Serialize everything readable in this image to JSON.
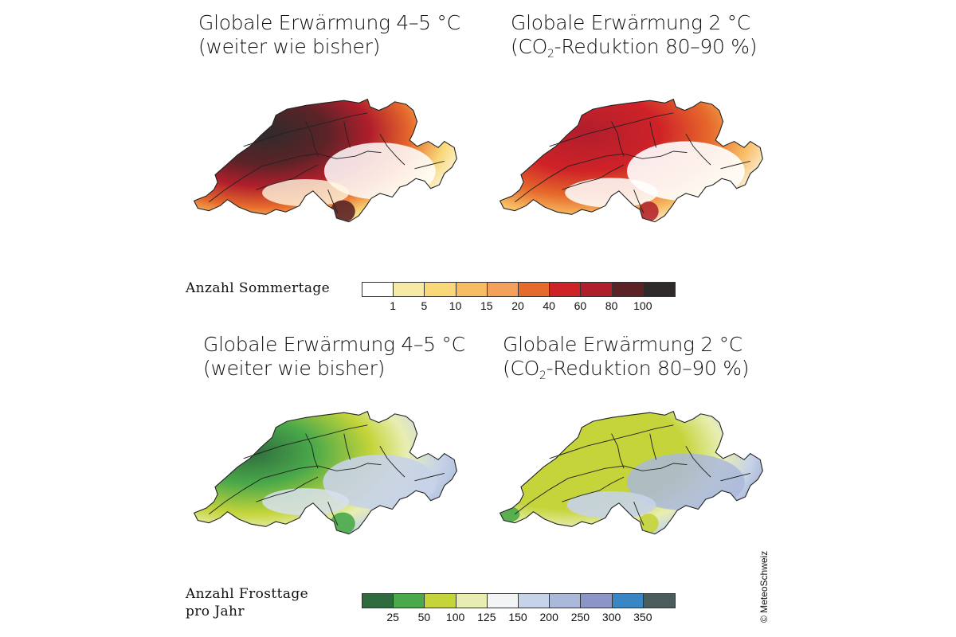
{
  "panels": [
    {
      "title_line1": "Globale Erwärmung 4–5 °C",
      "title_line2": "(weiter wie bisher)"
    },
    {
      "title_line1": "Globale Erwärmung 2 °C",
      "title_line2_pre": "(CO",
      "title_line2_sub": "2",
      "title_line2_post": "-Reduktion 80–90 %)"
    },
    {
      "title_line1": "Globale Erwärmung 4–5 °C",
      "title_line2": "(weiter wie bisher)"
    },
    {
      "title_line1": "Globale Erwärmung 2 °C",
      "title_line2_pre": "(CO",
      "title_line2_sub": "2",
      "title_line2_post": "-Reduktion 80–90 %)"
    }
  ],
  "legend_summer": {
    "label": "Anzahl Sommertage",
    "colors": [
      "#ffffff",
      "#f6eaa6",
      "#f8d878",
      "#f7bc62",
      "#f3a05a",
      "#e66a2c",
      "#cf2228",
      "#b01e2c",
      "#5c2327",
      "#2f2b2b"
    ],
    "ticks": [
      "1",
      "5",
      "10",
      "15",
      "20",
      "40",
      "60",
      "80",
      "100"
    ]
  },
  "legend_frost": {
    "label_line1": "Anzahl Frosttage",
    "label_line2": "pro Jahr",
    "colors": [
      "#2f6b3e",
      "#4aa94a",
      "#c4d43a",
      "#e8eeb2",
      "#f2f4f6",
      "#c6d3e8",
      "#aab8da",
      "#8b95c6",
      "#3a86c4",
      "#4a5c5c"
    ],
    "ticks": [
      "25",
      "50",
      "100",
      "125",
      "150",
      "200",
      "250",
      "300",
      "350"
    ]
  },
  "credit": "© MeteoSchweiz"
}
